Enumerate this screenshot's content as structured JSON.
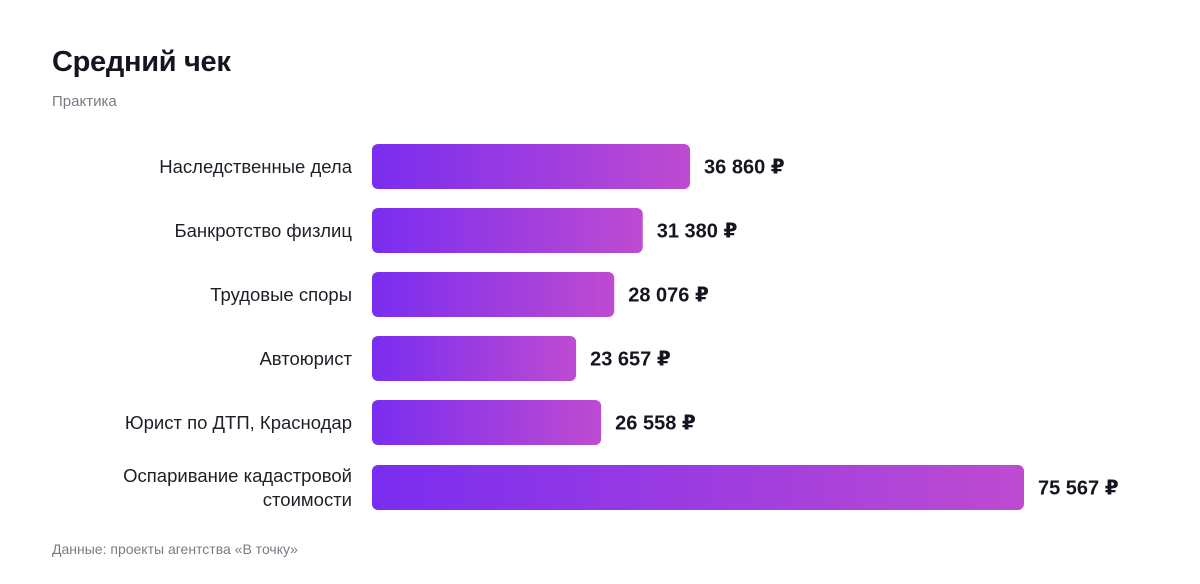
{
  "title": "Средний чек",
  "subtitle": "Практика",
  "source": "Данные: проекты агентства «В точку»",
  "colors": {
    "bar_start": "#7a2df0",
    "bar_end": "#be4bd1"
  },
  "chart_data": {
    "type": "bar",
    "orientation": "horizontal",
    "title": "Средний чек",
    "subtitle": "Практика",
    "unit": "₽",
    "categories": [
      [
        "Наследственные дела"
      ],
      [
        "Банкротство физлиц"
      ],
      [
        "Трудовые споры"
      ],
      [
        "Автоюрист"
      ],
      [
        "Юрист по ДТП, Краснодар"
      ],
      [
        "Оспаривание кадастровой",
        "стоимости"
      ]
    ],
    "values": [
      36860,
      31380,
      28076,
      23657,
      26558,
      75567
    ],
    "value_labels": [
      "36 860",
      "31 380",
      "28 076",
      "23 657",
      "26 558",
      "75 567"
    ],
    "xlim": [
      0,
      75567
    ],
    "grid": false,
    "legend": "none"
  }
}
